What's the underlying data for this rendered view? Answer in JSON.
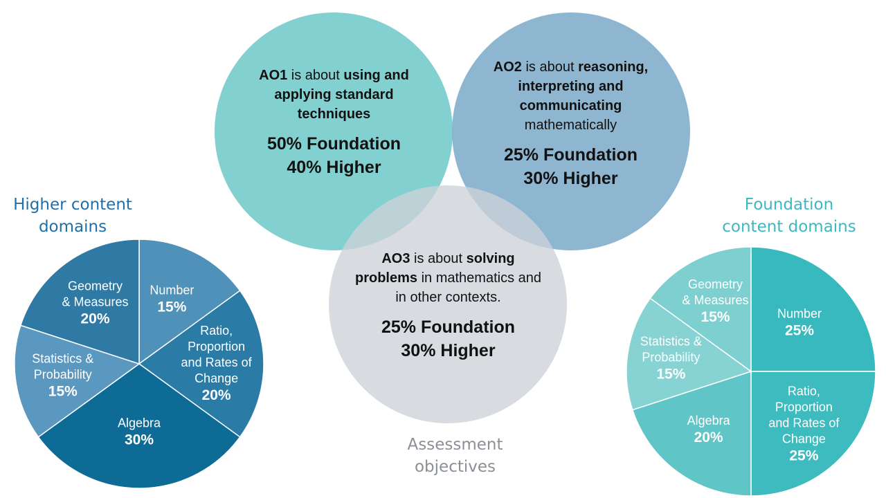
{
  "higher_title": "Higher content domains",
  "foundation_title": "Foundation content domains",
  "ao_title": "Assessment objectives",
  "colors": {
    "higher_palette": [
      "#4f91b8",
      "#2a7ba6",
      "#0d6b96",
      "#5a98c0",
      "#2f79a5"
    ],
    "foundation_palette": [
      "#37b9bd",
      "#3ebbbe",
      "#5fc5c7",
      "#87d2d3",
      "#7dcfd0"
    ],
    "ao1": "#7ccece",
    "ao2": "#83aecb",
    "ao3": "#cdd2d8"
  },
  "ao": [
    {
      "desc_segments": [
        {
          "text": "AO1",
          "bold": true
        },
        {
          "text": " is about ",
          "bold": false
        },
        {
          "text": "using and applying standard techniques",
          "bold": true
        }
      ],
      "foundation": "50% Foundation",
      "higher": "40% Higher"
    },
    {
      "desc_segments": [
        {
          "text": "AO2",
          "bold": true
        },
        {
          "text": " is about ",
          "bold": false
        },
        {
          "text": "reasoning, interpreting and communicating",
          "bold": true
        },
        {
          "text": " mathematically",
          "bold": false
        }
      ],
      "foundation": "25% Foundation",
      "higher": "30% Higher"
    },
    {
      "desc_segments": [
        {
          "text": "AO3",
          "bold": true
        },
        {
          "text": " is about ",
          "bold": false
        },
        {
          "text": "solving problems",
          "bold": true
        },
        {
          "text": " in mathematics and in other contexts.",
          "bold": false
        }
      ],
      "foundation": "25% Foundation",
      "higher": "30% Higher"
    }
  ],
  "chart_data": [
    {
      "type": "pie",
      "title": "Higher content domains",
      "slices": [
        {
          "label": [
            "Number"
          ],
          "value": 15,
          "pct": "15%"
        },
        {
          "label": [
            "Ratio,",
            "Proportion",
            "and Rates of",
            "Change"
          ],
          "value": 20,
          "pct": "20%"
        },
        {
          "label": [
            "Algebra"
          ],
          "value": 30,
          "pct": "30%"
        },
        {
          "label": [
            "Statistics &",
            "Probability"
          ],
          "value": 15,
          "pct": "15%"
        },
        {
          "label": [
            "Geometry",
            "& Measures"
          ],
          "value": 20,
          "pct": "20%"
        }
      ]
    },
    {
      "type": "pie",
      "title": "Foundation content domains",
      "slices": [
        {
          "label": [
            "Number"
          ],
          "value": 25,
          "pct": "25%"
        },
        {
          "label": [
            "Ratio,",
            "Proportion",
            "and Rates of",
            "Change"
          ],
          "value": 25,
          "pct": "25%"
        },
        {
          "label": [
            "Algebra"
          ],
          "value": 20,
          "pct": "20%"
        },
        {
          "label": [
            "Statistics &",
            "Probability"
          ],
          "value": 15,
          "pct": "15%"
        },
        {
          "label": [
            "Geometry",
            "& Measures"
          ],
          "value": 15,
          "pct": "15%"
        }
      ]
    }
  ]
}
